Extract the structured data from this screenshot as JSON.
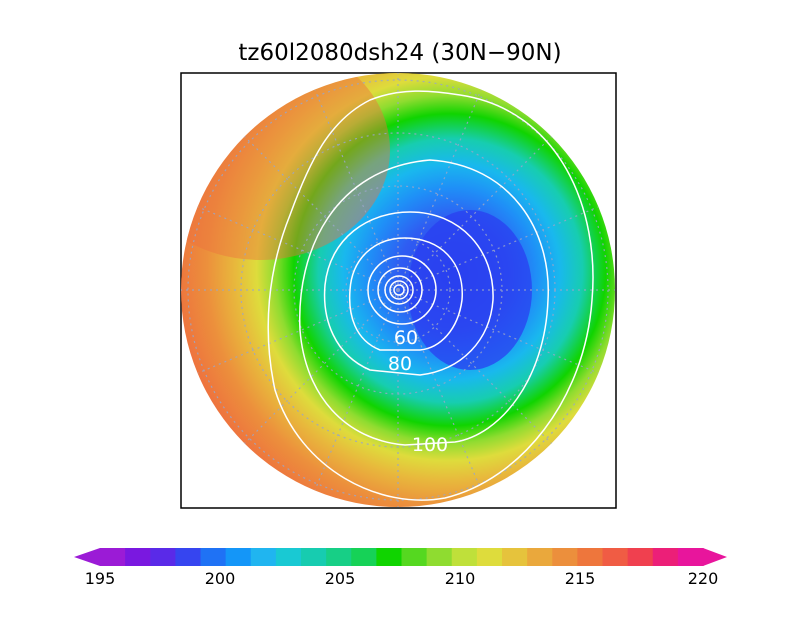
{
  "title": "tz60l2080dsh24 (30N−90N)",
  "colorbar": {
    "tick_labels": [
      "195",
      "200",
      "205",
      "210",
      "215",
      "220"
    ],
    "colors": [
      "#9b1bd6",
      "#7a18e0",
      "#5a2ae8",
      "#3645f0",
      "#1f72f5",
      "#1496f8",
      "#20b5f0",
      "#19c9d3",
      "#17ccb0",
      "#17cf86",
      "#16d257",
      "#10d400",
      "#55d820",
      "#8fdc30",
      "#bfe03a",
      "#dedc3c",
      "#e6c33c",
      "#eaa83c",
      "#ec8f3c",
      "#ee763c",
      "#f05c44",
      "#f0404f",
      "#ec1f78",
      "#e8159c"
    ]
  },
  "contour_labels": [
    "60",
    "80",
    "100"
  ],
  "chart_data": {
    "type": "heatmap",
    "title": "tz60l2080dsh24 (30N−90N)",
    "projection": "north polar stereographic",
    "domain": "30N-90N",
    "field_range": [
      195,
      220
    ],
    "colorbar_ticks": [
      195,
      200,
      205,
      210,
      215,
      220
    ],
    "contour_levels_labeled": [
      60,
      80,
      100
    ],
    "minimum_region": "near pole, offset slightly right; shaded ~200",
    "maximum_region": "upper-left rim; shaded ~219"
  }
}
